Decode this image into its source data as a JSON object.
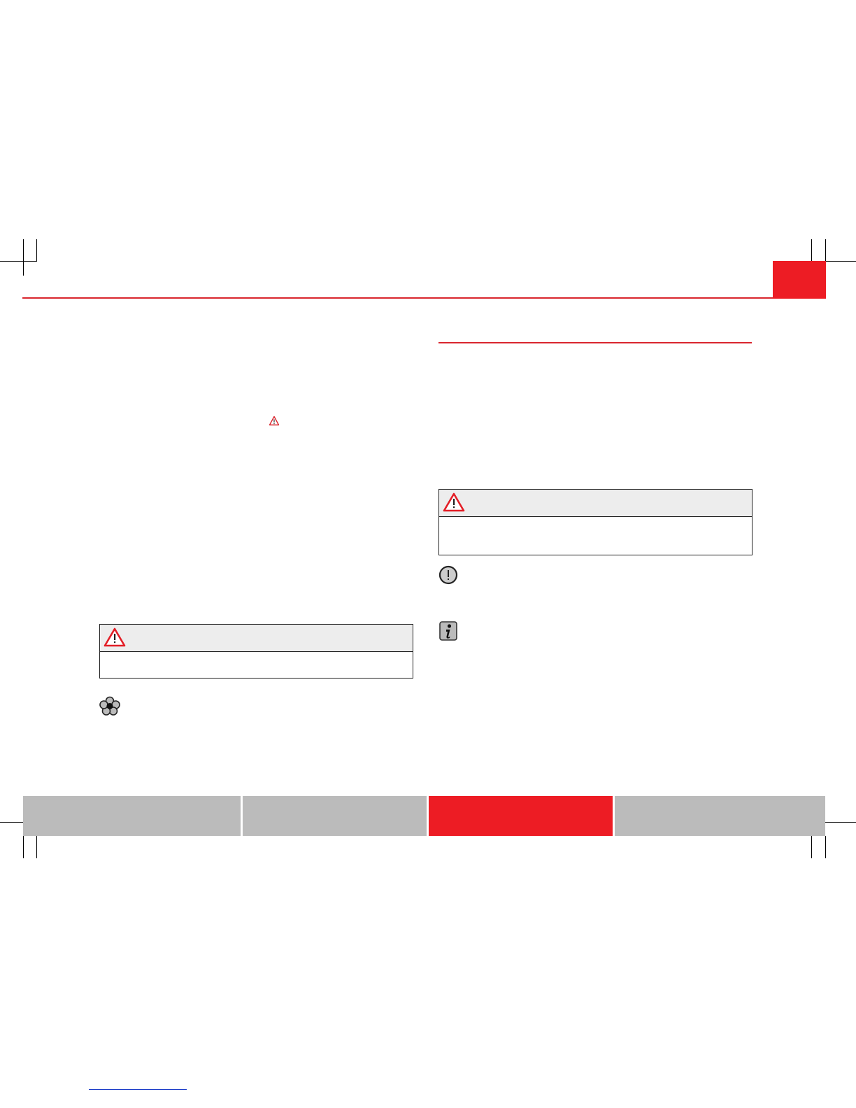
{
  "colors": {
    "accent": "#ed1c24",
    "tab_gray": "#bbbbbb",
    "box_header": "#ededed"
  },
  "icons": {
    "inline_warning": "warning-triangle-icon",
    "box_warning": "warning-triangle-icon",
    "environment": "flower-icon",
    "caution": "exclamation-circle-icon",
    "info": "info-icon"
  },
  "footer_tabs": [
    {
      "active": false
    },
    {
      "active": false
    },
    {
      "active": true
    },
    {
      "active": false
    }
  ]
}
